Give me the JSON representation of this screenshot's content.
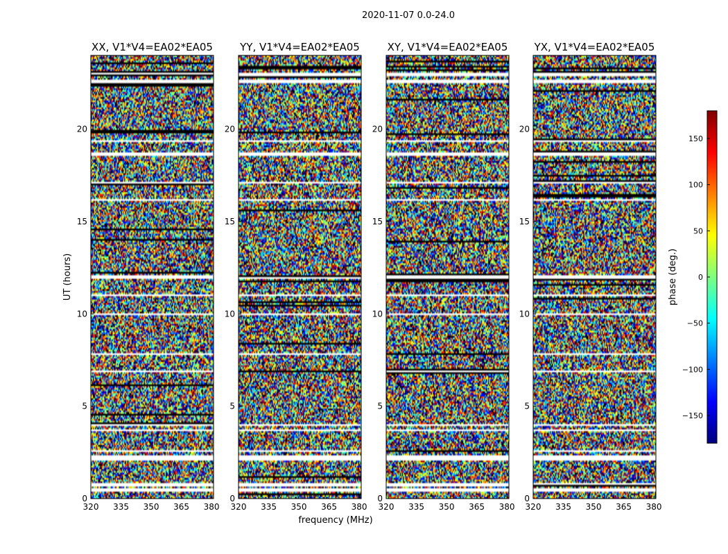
{
  "chart_data": {
    "type": "heatmap",
    "title": "2020-11-07 0.0-24.0",
    "xlabel": "frequency (MHz)",
    "ylabel": "UT (hours)",
    "xlim": [
      320,
      381
    ],
    "ylim": [
      0,
      24
    ],
    "xticks": [
      320,
      335,
      350,
      365,
      380
    ],
    "yticks": [
      0,
      5,
      10,
      15,
      20
    ],
    "panels": [
      {
        "title": "XX, V1*V4=EA02*EA05",
        "pol": "XX"
      },
      {
        "title": "YY, V1*V4=EA02*EA05",
        "pol": "YY"
      },
      {
        "title": "XY, V1*V4=EA02*EA05",
        "pol": "XY"
      },
      {
        "title": "YX, V1*V4=EA02*EA05",
        "pol": "YX"
      }
    ],
    "flagged_bands_hours": [
      [
        0.42,
        0.55
      ],
      [
        0.68,
        0.8
      ],
      [
        2.1,
        2.3
      ],
      [
        2.5,
        2.6
      ],
      [
        3.65,
        3.75
      ],
      [
        3.95,
        4.05
      ],
      [
        6.8,
        6.9
      ],
      [
        7.75,
        7.85
      ],
      [
        9.95,
        10.05
      ],
      [
        10.95,
        11.05
      ],
      [
        11.9,
        12.05
      ],
      [
        16.1,
        16.2
      ],
      [
        17.05,
        17.12
      ],
      [
        18.6,
        18.75
      ],
      [
        19.3,
        19.45
      ],
      [
        22.5,
        22.65
      ],
      [
        22.9,
        23.05
      ]
    ],
    "colorbar": {
      "label": "phase (deg.)",
      "range": [
        -180,
        180
      ],
      "ticks": [
        150,
        100,
        50,
        0,
        -50,
        -100,
        -150
      ],
      "colormap": [
        "#00007f",
        "#0000ff",
        "#007fff",
        "#00ffff",
        "#7fff7f",
        "#ffff00",
        "#ff7f00",
        "#ff0000",
        "#7f0000"
      ]
    }
  }
}
